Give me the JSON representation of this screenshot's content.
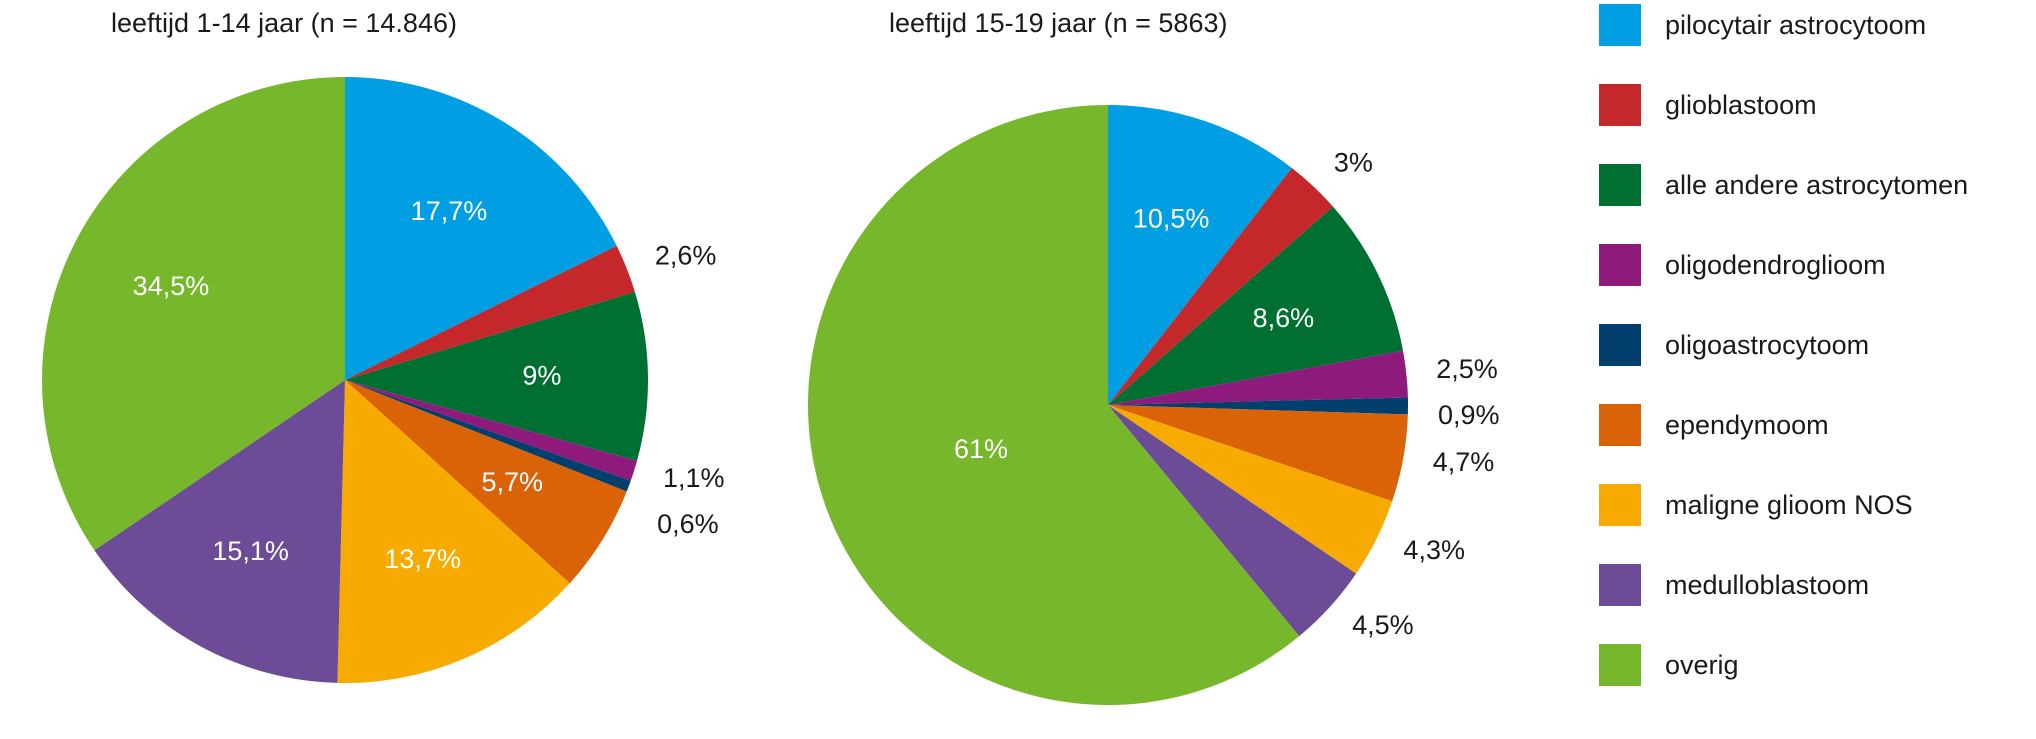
{
  "chart_data": [
    {
      "type": "pie",
      "title": "leeftijd 1-14 jaar (n = 14.846)",
      "categories": [
        "pilocytair astrocytoom",
        "glioblastoom",
        "alle andere astrocytomen",
        "oligodendroglioom",
        "oligoastrocytoom",
        "ependymoom",
        "maligne glioom NOS",
        "medulloblastoom",
        "overig"
      ],
      "values": [
        17.7,
        2.6,
        9,
        1.1,
        0.6,
        5.7,
        13.7,
        15.1,
        34.5
      ],
      "labels": [
        "17,7%",
        "2,6%",
        "9%",
        "1,1%",
        "0,6%",
        "5,7%",
        "13,7%",
        "15,1%",
        "34,5%"
      ]
    },
    {
      "type": "pie",
      "title": "leeftijd 15-19 jaar (n = 5863)",
      "categories": [
        "pilocytair astrocytoom",
        "glioblastoom",
        "alle andere astrocytomen",
        "oligodendroglioom",
        "oligoastrocytoom",
        "ependymoom",
        "maligne glioom NOS",
        "medulloblastoom",
        "overig"
      ],
      "values": [
        10.5,
        3,
        8.6,
        2.5,
        0.9,
        4.7,
        4.3,
        4.5,
        61
      ],
      "labels": [
        "10,5%",
        "3%",
        "8,6%",
        "2,5%",
        "0,9%",
        "4,7%",
        "4,3%",
        "4,5%",
        "61%"
      ]
    }
  ],
  "legend": {
    "placement": "right",
    "items": [
      {
        "label": "pilocytair astrocytoom",
        "color": "#009FE3"
      },
      {
        "label": "glioblastoom",
        "color": "#C4282A"
      },
      {
        "label": "alle andere astrocytomen",
        "color": "#006F32"
      },
      {
        "label": "oligodendroglioom",
        "color": "#8E1A7C"
      },
      {
        "label": "oligoastrocytoom",
        "color": "#003F6E"
      },
      {
        "label": "ependymoom",
        "color": "#DA6207"
      },
      {
        "label": "maligne glioom NOS",
        "color": "#F7AB00"
      },
      {
        "label": "medulloblastoom",
        "color": "#6D4C97"
      },
      {
        "label": "overig",
        "color": "#77B72B"
      }
    ]
  }
}
